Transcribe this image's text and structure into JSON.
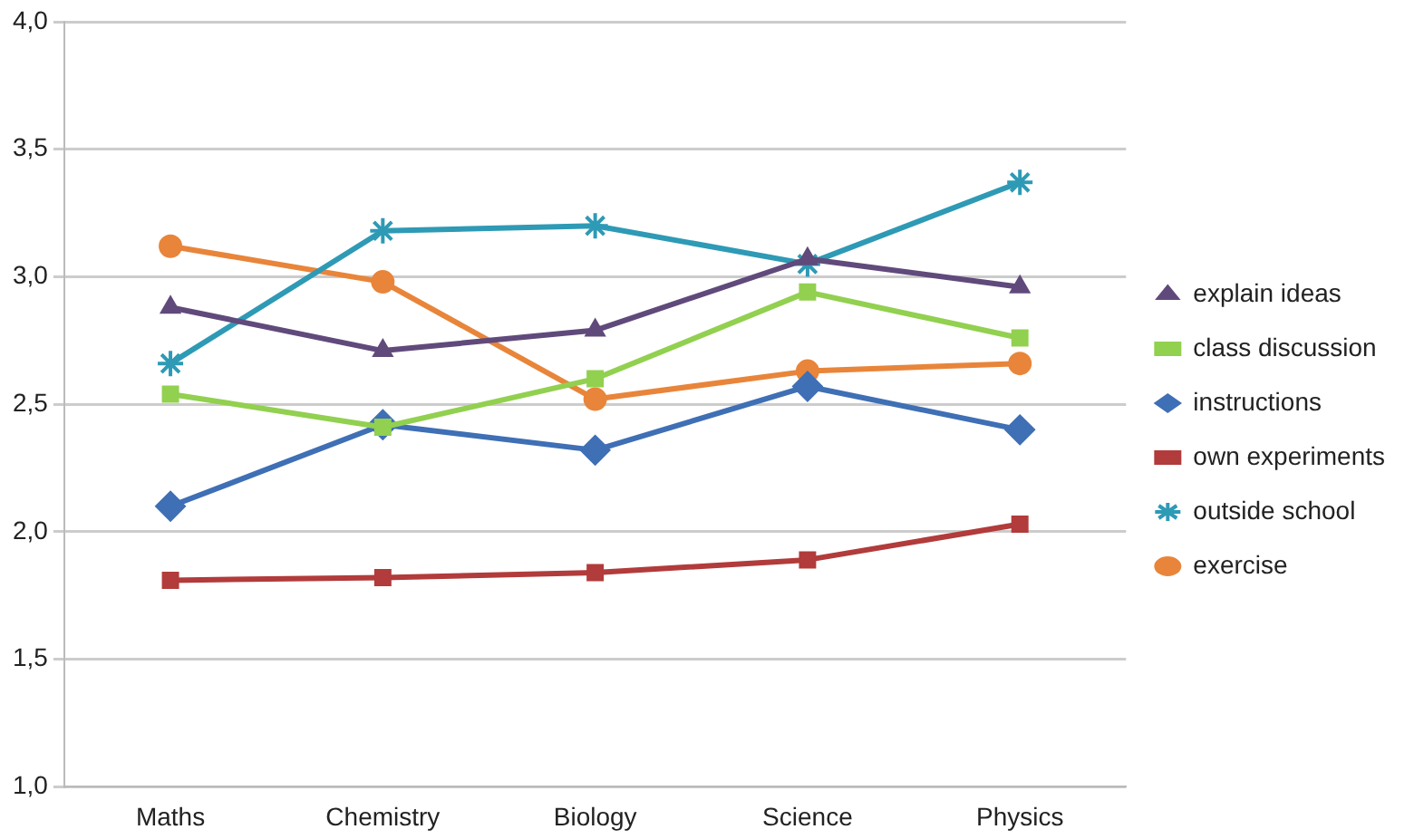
{
  "chart_data": {
    "type": "line",
    "categories": [
      "Maths",
      "Chemistry",
      "Biology",
      "Science",
      "Physics"
    ],
    "series": [
      {
        "name": "explain ideas",
        "color": "#604a7b",
        "marker": "triangle",
        "values": [
          2.88,
          2.71,
          2.79,
          3.07,
          2.96
        ]
      },
      {
        "name": "class discussion",
        "color": "#92d050",
        "marker": "square",
        "values": [
          2.54,
          2.41,
          2.6,
          2.94,
          2.76
        ]
      },
      {
        "name": "instructions",
        "color": "#3f6fb5",
        "marker": "diamond",
        "values": [
          2.1,
          2.42,
          2.32,
          2.57,
          2.4
        ]
      },
      {
        "name": "own experiments",
        "color": "#b23b3b",
        "marker": "square",
        "values": [
          1.81,
          1.82,
          1.84,
          1.89,
          2.03
        ]
      },
      {
        "name": "outside school",
        "color": "#2e9ab5",
        "marker": "cross",
        "values": [
          2.66,
          3.18,
          3.2,
          3.05,
          3.37
        ]
      },
      {
        "name": "exercise",
        "color": "#e8853a",
        "marker": "circle",
        "values": [
          3.12,
          2.98,
          2.52,
          2.63,
          2.66
        ]
      }
    ],
    "ylim": [
      1,
      4
    ],
    "yticks": [
      {
        "value": 1,
        "label": "1,0"
      },
      {
        "value": 1.5,
        "label": "1,5"
      },
      {
        "value": 2,
        "label": "2,0"
      },
      {
        "value": 2.5,
        "label": "2,5"
      },
      {
        "value": 3,
        "label": "3,0"
      },
      {
        "value": 3.5,
        "label": "3,5"
      },
      {
        "value": 4,
        "label": "4,0"
      }
    ],
    "grid": "y",
    "legend": "right",
    "line_style": "solid"
  }
}
